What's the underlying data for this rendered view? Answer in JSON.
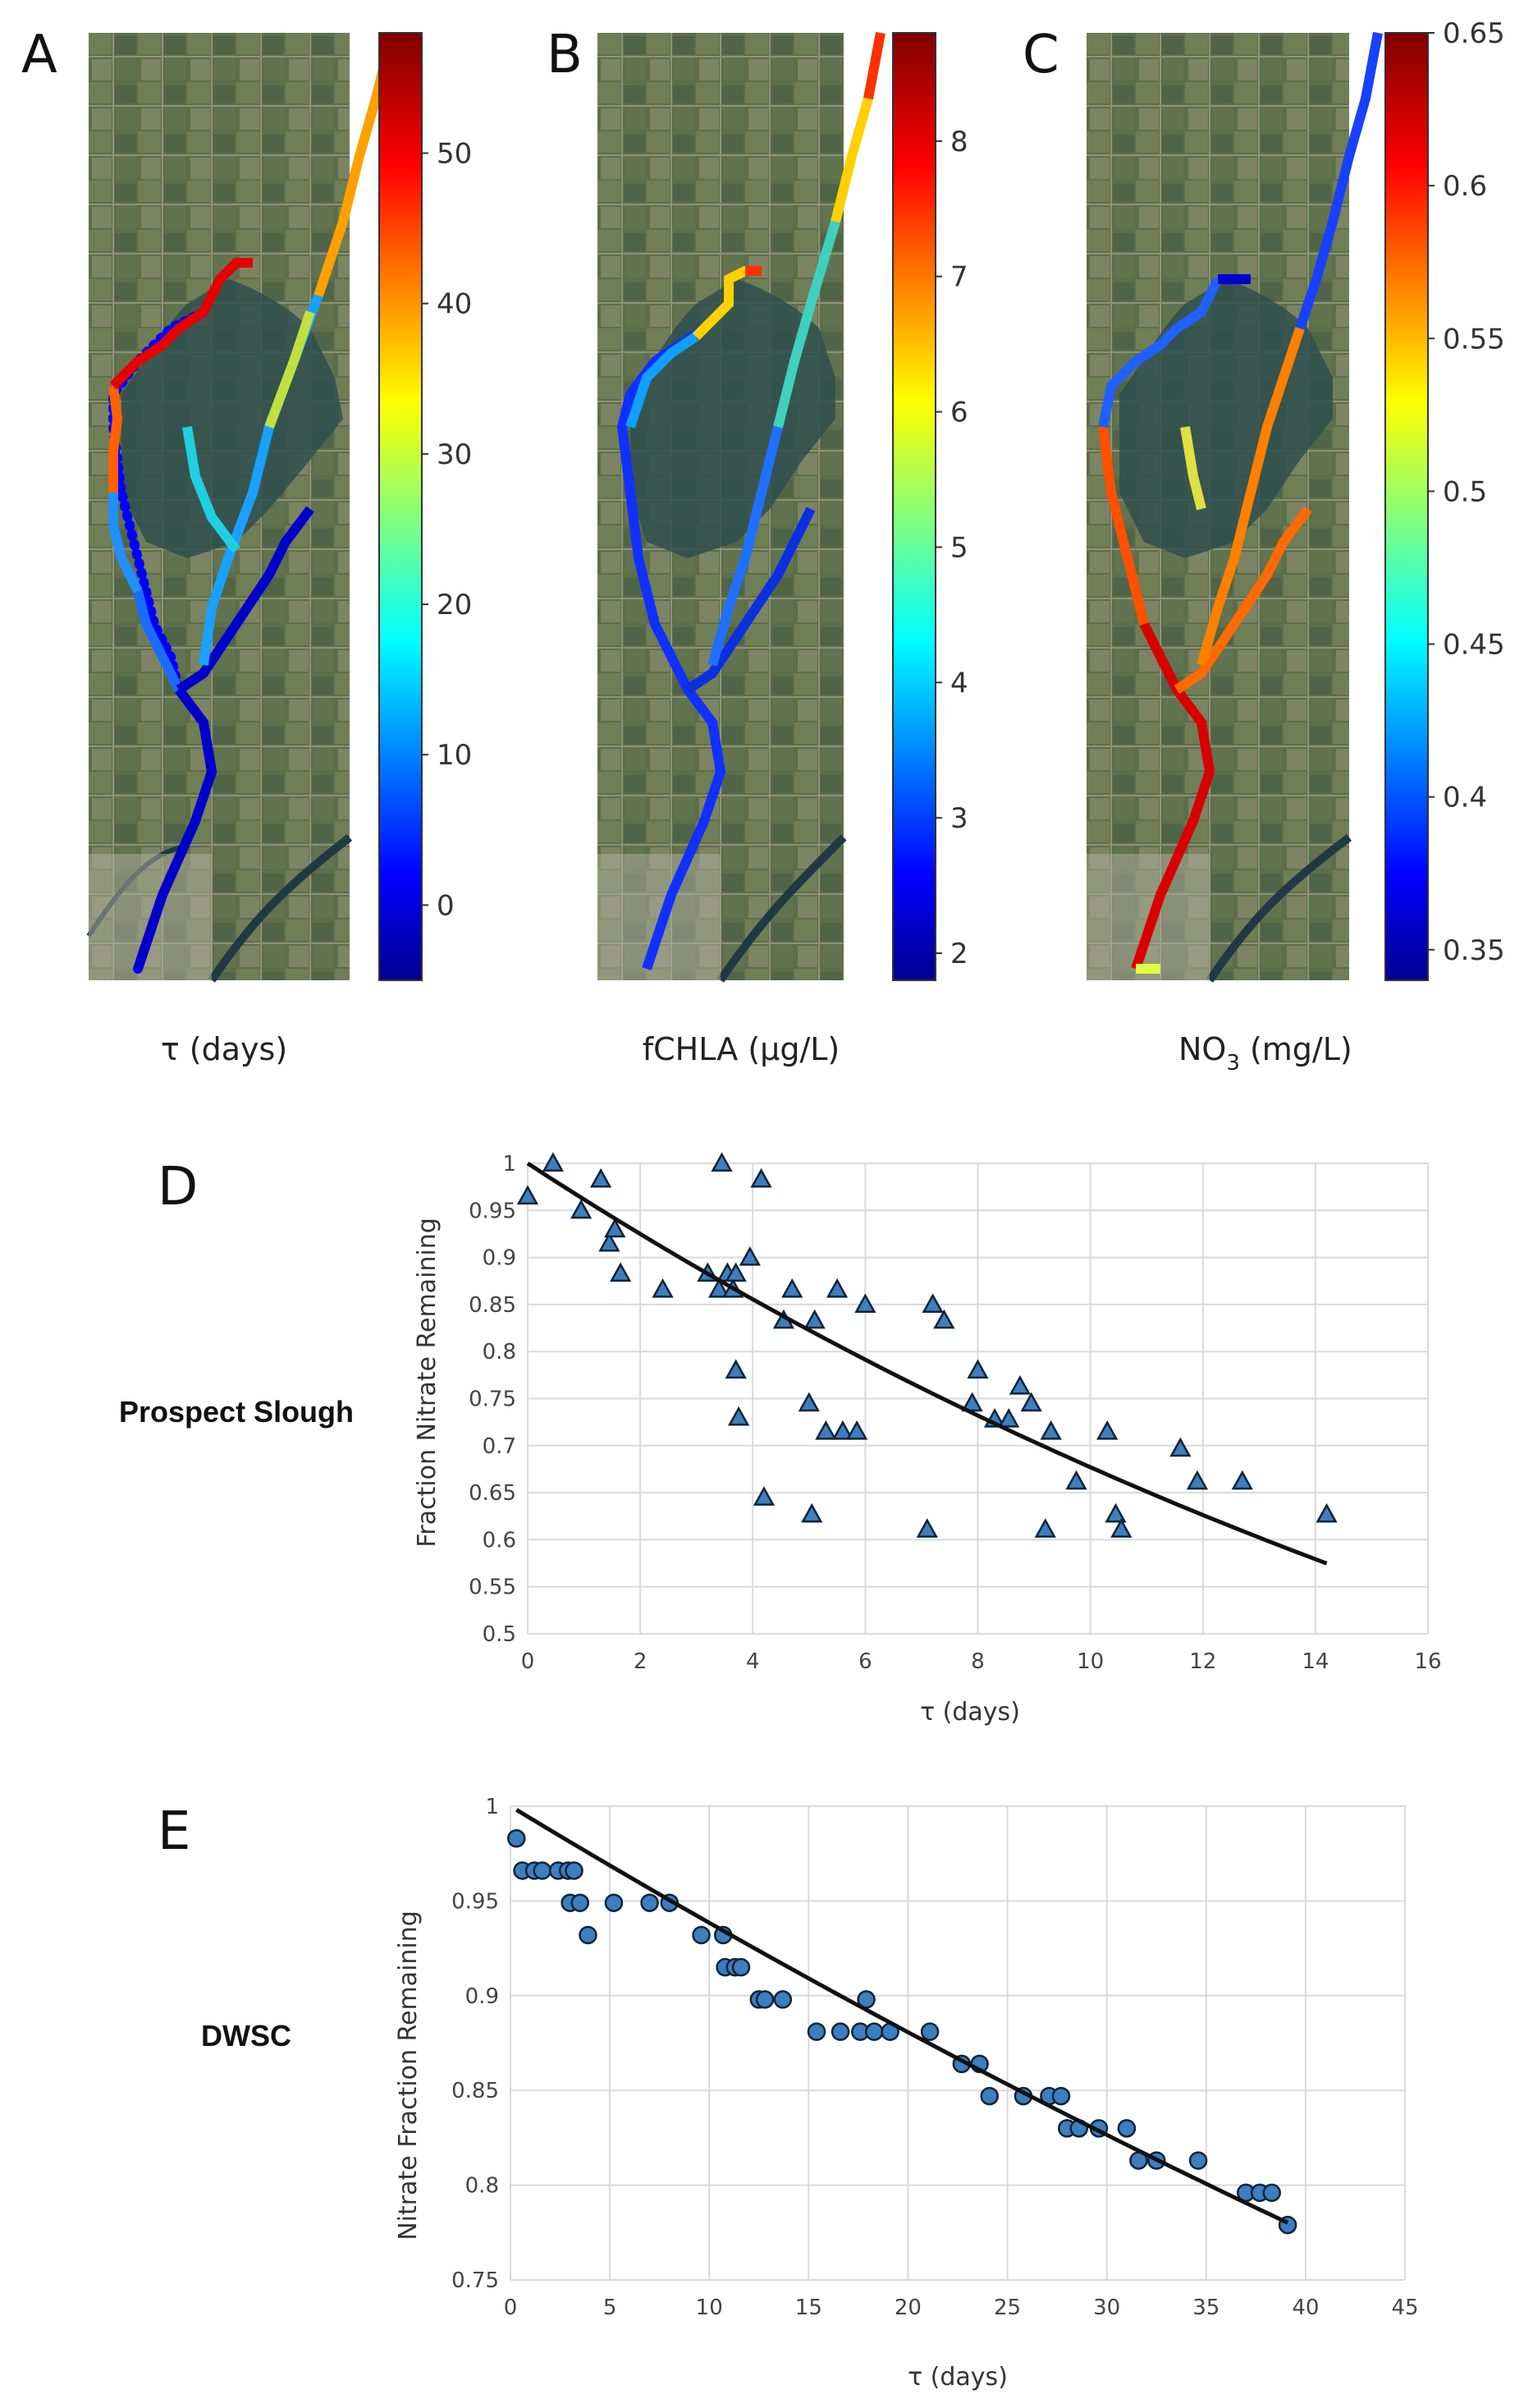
{
  "maps": [
    {
      "id": "A",
      "letter": "A",
      "caption": "τ (days)",
      "colorbar": {
        "min": -5,
        "max": 58,
        "ticks": [
          "0",
          "10",
          "20",
          "30",
          "40",
          "50"
        ],
        "tick_values": [
          0,
          10,
          20,
          30,
          40,
          50
        ]
      }
    },
    {
      "id": "B",
      "letter": "B",
      "caption": "fCHLA (µg/L)",
      "colorbar": {
        "min": 1.8,
        "max": 8.8,
        "ticks": [
          "2",
          "3",
          "4",
          "5",
          "6",
          "7",
          "8"
        ],
        "tick_values": [
          2,
          3,
          4,
          5,
          6,
          7,
          8
        ]
      }
    },
    {
      "id": "C",
      "letter": "C",
      "caption_main": "NO",
      "caption_sub": "3",
      "caption_unit": " (mg/L)",
      "colorbar": {
        "min": 0.34,
        "max": 0.65,
        "ticks": [
          "0.35",
          "0.4",
          "0.45",
          "0.5",
          "0.55",
          "0.6",
          "0.65"
        ],
        "tick_values": [
          0.35,
          0.4,
          0.45,
          0.5,
          0.55,
          0.6,
          0.65
        ]
      }
    }
  ],
  "chart_data": [
    {
      "id": "D",
      "letter": "D",
      "type": "scatter",
      "row_label": "Prospect Slough",
      "marker": "triangle",
      "marker_color": "#3d7ebf",
      "xlabel": "τ (days)",
      "ylabel": "Fraction Nitrate Remaining",
      "xlim": [
        0,
        16
      ],
      "ylim": [
        0.5,
        1
      ],
      "xticks": [
        "0",
        "2",
        "4",
        "6",
        "8",
        "10",
        "12",
        "14",
        "16"
      ],
      "xtick_values": [
        0,
        2,
        4,
        6,
        8,
        10,
        12,
        14,
        16
      ],
      "yticks": [
        "0.5",
        "0.55",
        "0.6",
        "0.65",
        "0.7",
        "0.75",
        "0.8",
        "0.85",
        "0.9",
        "0.95",
        "1"
      ],
      "ytick_values": [
        0.5,
        0.55,
        0.6,
        0.65,
        0.7,
        0.75,
        0.8,
        0.85,
        0.9,
        0.95,
        1
      ],
      "points": [
        [
          0.0,
          0.965
        ],
        [
          0.45,
          1.0
        ],
        [
          0.95,
          0.95
        ],
        [
          1.3,
          0.983
        ],
        [
          1.45,
          0.915
        ],
        [
          1.55,
          0.93
        ],
        [
          1.65,
          0.883
        ],
        [
          2.4,
          0.866
        ],
        [
          3.2,
          0.883
        ],
        [
          3.4,
          0.866
        ],
        [
          3.45,
          1.0
        ],
        [
          3.55,
          0.883
        ],
        [
          3.65,
          0.866
        ],
        [
          3.7,
          0.883
        ],
        [
          3.7,
          0.78
        ],
        [
          3.75,
          0.73
        ],
        [
          3.95,
          0.9
        ],
        [
          4.15,
          0.983
        ],
        [
          4.2,
          0.645
        ],
        [
          4.55,
          0.833
        ],
        [
          4.7,
          0.866
        ],
        [
          5.0,
          0.745
        ],
        [
          5.05,
          0.627
        ],
        [
          5.1,
          0.833
        ],
        [
          5.3,
          0.715
        ],
        [
          5.5,
          0.866
        ],
        [
          5.6,
          0.715
        ],
        [
          5.85,
          0.715
        ],
        [
          6.0,
          0.85
        ],
        [
          7.1,
          0.611
        ],
        [
          7.2,
          0.85
        ],
        [
          7.4,
          0.833
        ],
        [
          7.9,
          0.745
        ],
        [
          8.0,
          0.78
        ],
        [
          8.3,
          0.728
        ],
        [
          8.55,
          0.728
        ],
        [
          8.75,
          0.763
        ],
        [
          8.95,
          0.745
        ],
        [
          9.2,
          0.611
        ],
        [
          9.3,
          0.715
        ],
        [
          9.75,
          0.662
        ],
        [
          10.3,
          0.715
        ],
        [
          10.45,
          0.627
        ],
        [
          10.55,
          0.611
        ],
        [
          11.6,
          0.697
        ],
        [
          11.9,
          0.662
        ],
        [
          12.7,
          0.662
        ],
        [
          14.2,
          0.627
        ]
      ],
      "fit": {
        "type": "exponential",
        "a": 1.0,
        "k": 0.039,
        "x_range": [
          0,
          14.2
        ]
      }
    },
    {
      "id": "E",
      "letter": "E",
      "type": "scatter",
      "row_label": "DWSC",
      "marker": "circle",
      "marker_color": "#3d7ebf",
      "xlabel": "τ (days)",
      "ylabel": "Nitrate Fraction Remaining",
      "xlim": [
        0,
        45
      ],
      "ylim": [
        0.75,
        1
      ],
      "xticks": [
        "0",
        "5",
        "10",
        "15",
        "20",
        "25",
        "30",
        "35",
        "40",
        "45"
      ],
      "xtick_values": [
        0,
        5,
        10,
        15,
        20,
        25,
        30,
        35,
        40,
        45
      ],
      "yticks": [
        "0.75",
        "0.8",
        "0.85",
        "0.9",
        "0.95",
        "1"
      ],
      "ytick_values": [
        0.75,
        0.8,
        0.85,
        0.9,
        0.95,
        1
      ],
      "points": [
        [
          0.3,
          0.983
        ],
        [
          0.6,
          0.966
        ],
        [
          1.2,
          0.966
        ],
        [
          1.6,
          0.966
        ],
        [
          2.4,
          0.966
        ],
        [
          2.9,
          0.966
        ],
        [
          3.2,
          0.966
        ],
        [
          3.0,
          0.949
        ],
        [
          3.5,
          0.949
        ],
        [
          3.9,
          0.932
        ],
        [
          5.2,
          0.949
        ],
        [
          7.0,
          0.949
        ],
        [
          8.0,
          0.949
        ],
        [
          9.6,
          0.932
        ],
        [
          10.7,
          0.932
        ],
        [
          10.8,
          0.915
        ],
        [
          11.3,
          0.915
        ],
        [
          11.6,
          0.915
        ],
        [
          12.5,
          0.898
        ],
        [
          12.8,
          0.898
        ],
        [
          13.7,
          0.898
        ],
        [
          15.4,
          0.881
        ],
        [
          16.6,
          0.881
        ],
        [
          17.6,
          0.881
        ],
        [
          17.9,
          0.898
        ],
        [
          18.3,
          0.881
        ],
        [
          19.1,
          0.881
        ],
        [
          21.1,
          0.881
        ],
        [
          22.7,
          0.864
        ],
        [
          23.6,
          0.864
        ],
        [
          24.1,
          0.847
        ],
        [
          25.8,
          0.847
        ],
        [
          27.1,
          0.847
        ],
        [
          27.7,
          0.847
        ],
        [
          28.0,
          0.83
        ],
        [
          28.6,
          0.83
        ],
        [
          29.6,
          0.83
        ],
        [
          31.0,
          0.83
        ],
        [
          31.6,
          0.813
        ],
        [
          32.5,
          0.813
        ],
        [
          34.6,
          0.813
        ],
        [
          37.0,
          0.796
        ],
        [
          37.7,
          0.796
        ],
        [
          38.3,
          0.796
        ],
        [
          39.1,
          0.779
        ]
      ],
      "fit": {
        "type": "exponential",
        "a": 1.0,
        "k": 0.00635,
        "x_range": [
          0.3,
          39.1
        ]
      }
    }
  ]
}
